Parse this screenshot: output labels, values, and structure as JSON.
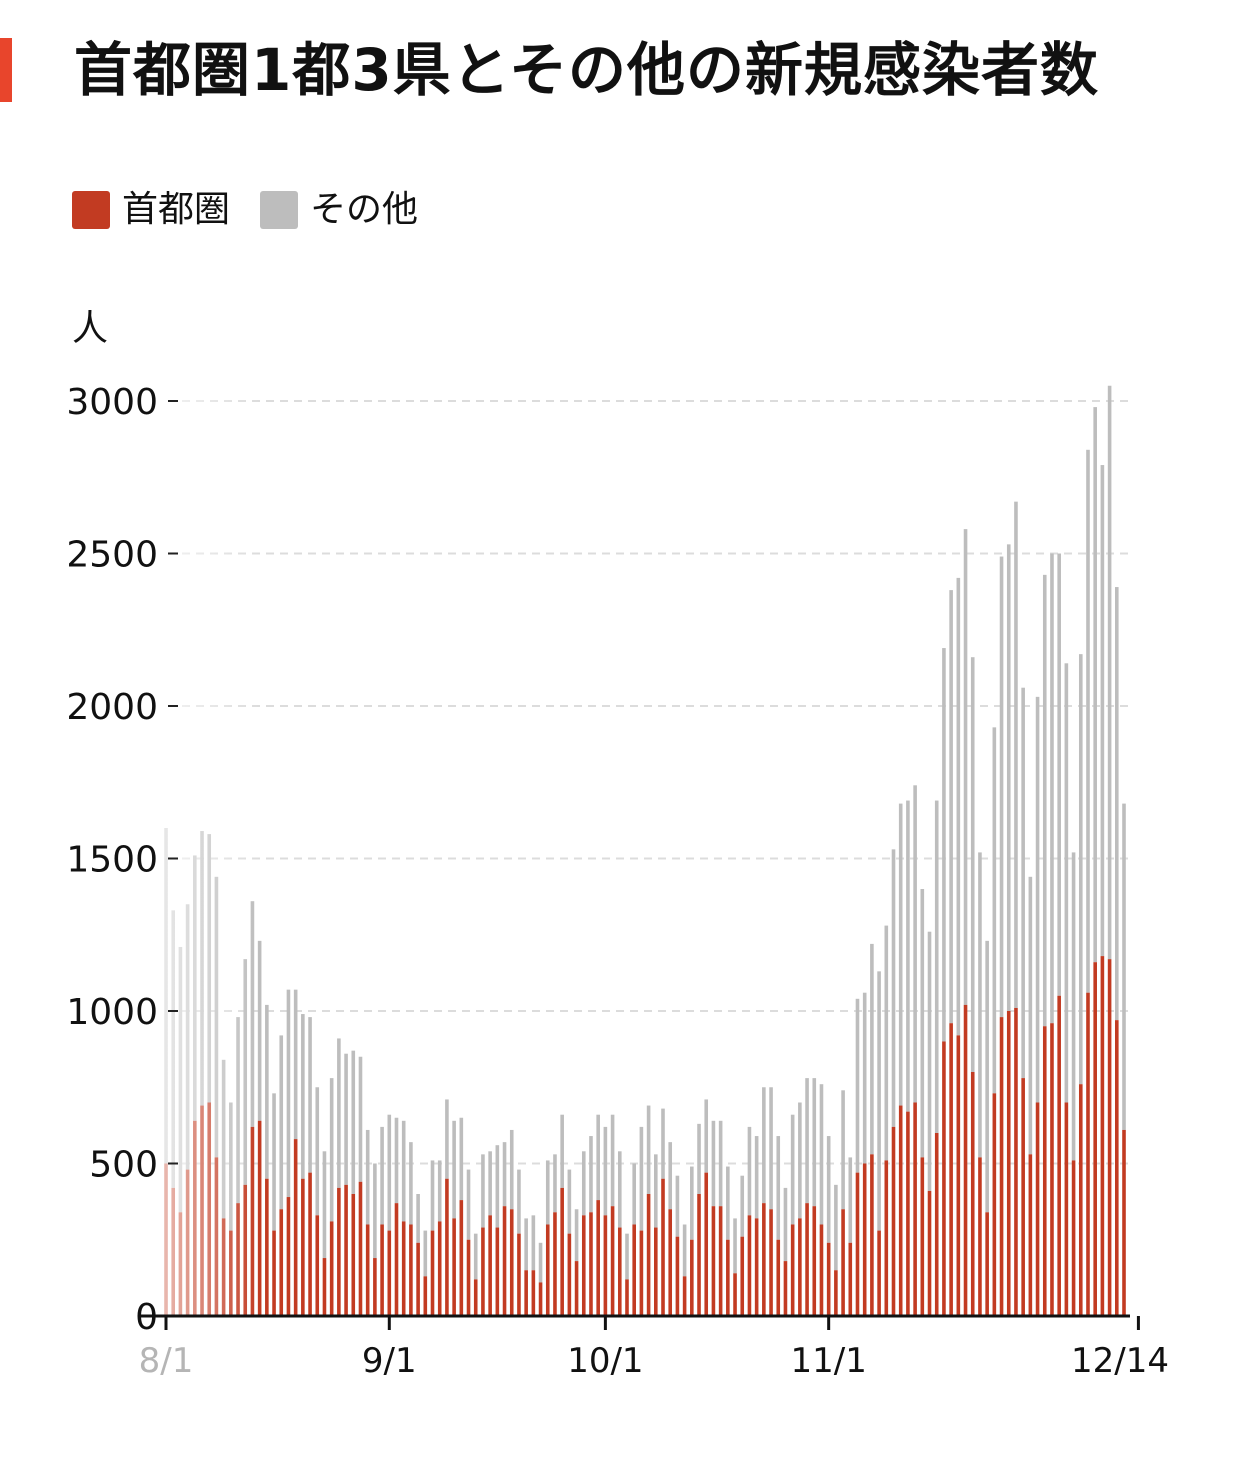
{
  "header": {
    "title": "首都圏1都3県とその他の新規感染者数",
    "accent_color": "#e8452c"
  },
  "legend": [
    {
      "label": "首都圏",
      "color": "#c23b22"
    },
    {
      "label": "その他",
      "color": "#bdbdbd"
    }
  ],
  "chart_data": {
    "type": "bar",
    "stacked": true,
    "ylabel": "人",
    "ylim": [
      0,
      3000
    ],
    "yticks": [
      0,
      500,
      1000,
      1500,
      2000,
      2500,
      3000
    ],
    "xticks": [
      {
        "index": 0,
        "label": "8/1"
      },
      {
        "index": 31,
        "label": "9/1"
      },
      {
        "index": 61,
        "label": "10/1"
      },
      {
        "index": 92,
        "label": "11/1"
      },
      {
        "index": 135,
        "label": "12/14"
      }
    ],
    "grid": "horizontal dashed",
    "fade_in_left": true,
    "series": [
      {
        "name": "首都圏",
        "color": "#c23b22",
        "values": [
          500,
          420,
          340,
          480,
          640,
          690,
          700,
          520,
          320,
          280,
          370,
          430,
          620,
          640,
          450,
          280,
          350,
          390,
          580,
          450,
          470,
          330,
          190,
          310,
          420,
          430,
          400,
          440,
          300,
          190,
          300,
          280,
          370,
          310,
          300,
          240,
          130,
          280,
          310,
          450,
          320,
          380,
          250,
          120,
          290,
          330,
          290,
          360,
          350,
          270,
          150,
          150,
          110,
          300,
          340,
          420,
          270,
          180,
          330,
          340,
          380,
          330,
          360,
          290,
          120,
          300,
          280,
          400,
          290,
          450,
          350,
          260,
          130,
          250,
          400,
          470,
          360,
          360,
          250,
          140,
          260,
          330,
          320,
          370,
          350,
          250,
          180,
          300,
          320,
          370,
          360,
          300,
          240,
          150,
          350,
          240,
          470,
          500,
          530,
          280,
          510,
          620,
          690,
          670,
          700,
          520,
          410,
          600,
          900,
          960,
          920,
          1020,
          800,
          520,
          340,
          730,
          980,
          1000,
          1010,
          780,
          530,
          700,
          950,
          960,
          1050,
          700,
          510,
          760,
          1060,
          1160,
          1180,
          1170,
          970,
          610
        ]
      },
      {
        "name": "その他",
        "color": "#bdbdbd",
        "values": [
          1100,
          910,
          870,
          870,
          870,
          900,
          880,
          920,
          520,
          420,
          610,
          740,
          740,
          590,
          570,
          450,
          570,
          680,
          490,
          540,
          510,
          420,
          350,
          470,
          490,
          430,
          470,
          410,
          310,
          310,
          320,
          380,
          280,
          330,
          270,
          160,
          150,
          230,
          200,
          260,
          320,
          270,
          230,
          150,
          240,
          210,
          270,
          210,
          260,
          210,
          170,
          180,
          130,
          210,
          190,
          240,
          210,
          170,
          210,
          250,
          280,
          290,
          300,
          250,
          150,
          200,
          340,
          290,
          240,
          230,
          220,
          200,
          170,
          240,
          230,
          240,
          280,
          280,
          240,
          180,
          200,
          290,
          270,
          380,
          400,
          340,
          240,
          360,
          380,
          410,
          420,
          460,
          350,
          280,
          390,
          280,
          570,
          560,
          690,
          850,
          770,
          910,
          990,
          1020,
          1040,
          880,
          850,
          1090,
          1290,
          1420,
          1500,
          1560,
          1360,
          1000,
          890,
          1200,
          1510,
          1530,
          1660,
          1280,
          910,
          1330,
          1480,
          1540,
          1450,
          1440,
          1010,
          1410,
          1780,
          1820,
          1610,
          1880,
          1420,
          1070
        ]
      }
    ]
  }
}
